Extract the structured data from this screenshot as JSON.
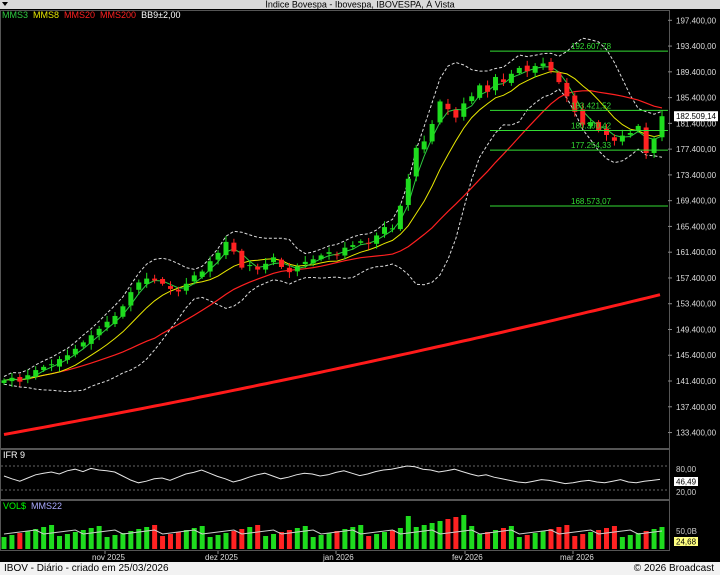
{
  "title": "Índice Bovespa - Ibovespa, IBOVESPA, À Vista",
  "indicators": [
    {
      "label": "MMS3",
      "color": "#2ecc40"
    },
    {
      "label": "MMS8",
      "color": "#e8e800"
    },
    {
      "label": "MMS20",
      "color": "#ff2020"
    },
    {
      "label": "MMS200",
      "color": "#ff2020"
    },
    {
      "label": "BB9±2,00",
      "color": "#ffffff"
    }
  ],
  "chart_data": {
    "type": "candlestick",
    "price_axis_ticks": [
      "197.400,00",
      "193.400,00",
      "189.400,00",
      "185.400,00",
      "181.400,00",
      "177.400,00",
      "173.400,00",
      "169.400,00",
      "165.400,00",
      "161.400,00",
      "157.400,00",
      "153.400,00",
      "149.400,00",
      "145.400,00",
      "141.400,00",
      "137.400,00",
      "133.400,00"
    ],
    "ylim": [
      131000,
      199000
    ],
    "last_price_label": "182.509,14",
    "x_labels": [
      "nov 2025",
      "dez 2025",
      "jan 2026",
      "fev 2026",
      "mar 2026"
    ],
    "closes": [
      141500,
      141900,
      141300,
      142300,
      143100,
      143600,
      144000,
      144800,
      145400,
      146400,
      147400,
      148500,
      149500,
      150600,
      151500,
      153000,
      155200,
      156700,
      157300,
      157000,
      156500,
      155700,
      155300,
      156500,
      157800,
      158400,
      160000,
      161300,
      163000,
      161500,
      159000,
      159400,
      158700,
      159600,
      160600,
      159100,
      158300,
      159200,
      159900,
      160300,
      160900,
      161400,
      161000,
      162100,
      162500,
      163100,
      162700,
      164000,
      165300,
      165100,
      168600,
      172800,
      177600,
      178600,
      181300,
      184800,
      183600,
      182300,
      184500,
      185600,
      187300,
      186300,
      188600,
      187800,
      189100,
      190000,
      189500,
      190300,
      190700,
      189600,
      187800,
      185600,
      183200,
      181200,
      181600,
      180300,
      179600,
      178700,
      179500,
      179900,
      181000,
      176800,
      179000,
      182509
    ],
    "fib_levels": [
      {
        "label": "192.607,78",
        "value": 192607.78
      },
      {
        "label": "183.421,52",
        "value": 183421.52
      },
      {
        "label": "180.300,42",
        "value": 180300.42
      },
      {
        "label": "177.254,33",
        "value": 177254.33
      },
      {
        "label": "168.573,07",
        "value": 168573.07
      }
    ],
    "mm200_start": 133100,
    "mm200_end": 154800
  },
  "rsi": {
    "label": "IFR 9",
    "upper_level_label": "80,00",
    "lower_level_label": "20,00",
    "value_label": "46,49",
    "upper_level": 80,
    "lower_level": 20,
    "values": [
      55,
      48,
      42,
      50,
      58,
      62,
      65,
      60,
      68,
      72,
      66,
      74,
      70,
      68,
      65,
      55,
      45,
      38,
      42,
      48,
      50,
      44,
      52,
      60,
      64,
      70,
      62,
      54,
      48,
      40,
      45,
      52,
      58,
      62,
      55,
      48,
      52,
      58,
      62,
      60,
      55,
      58,
      64,
      68,
      62,
      56,
      60,
      66,
      70,
      72,
      76,
      80,
      78,
      72,
      70,
      65,
      68,
      72,
      66,
      60,
      55,
      58,
      52,
      48,
      44,
      40,
      38,
      42,
      46,
      44,
      40,
      36,
      38,
      42,
      44,
      40,
      38,
      42,
      46,
      40,
      38,
      42,
      44,
      46.49
    ]
  },
  "volume": {
    "label": "VOL$",
    "ma_label": "MMS22",
    "axis_label": "50,0B",
    "value_label": "24,68"
  },
  "footer": {
    "left": "IBOV - Diário - criado em 25/03/2026",
    "right": "© 2026 Broadcast"
  }
}
